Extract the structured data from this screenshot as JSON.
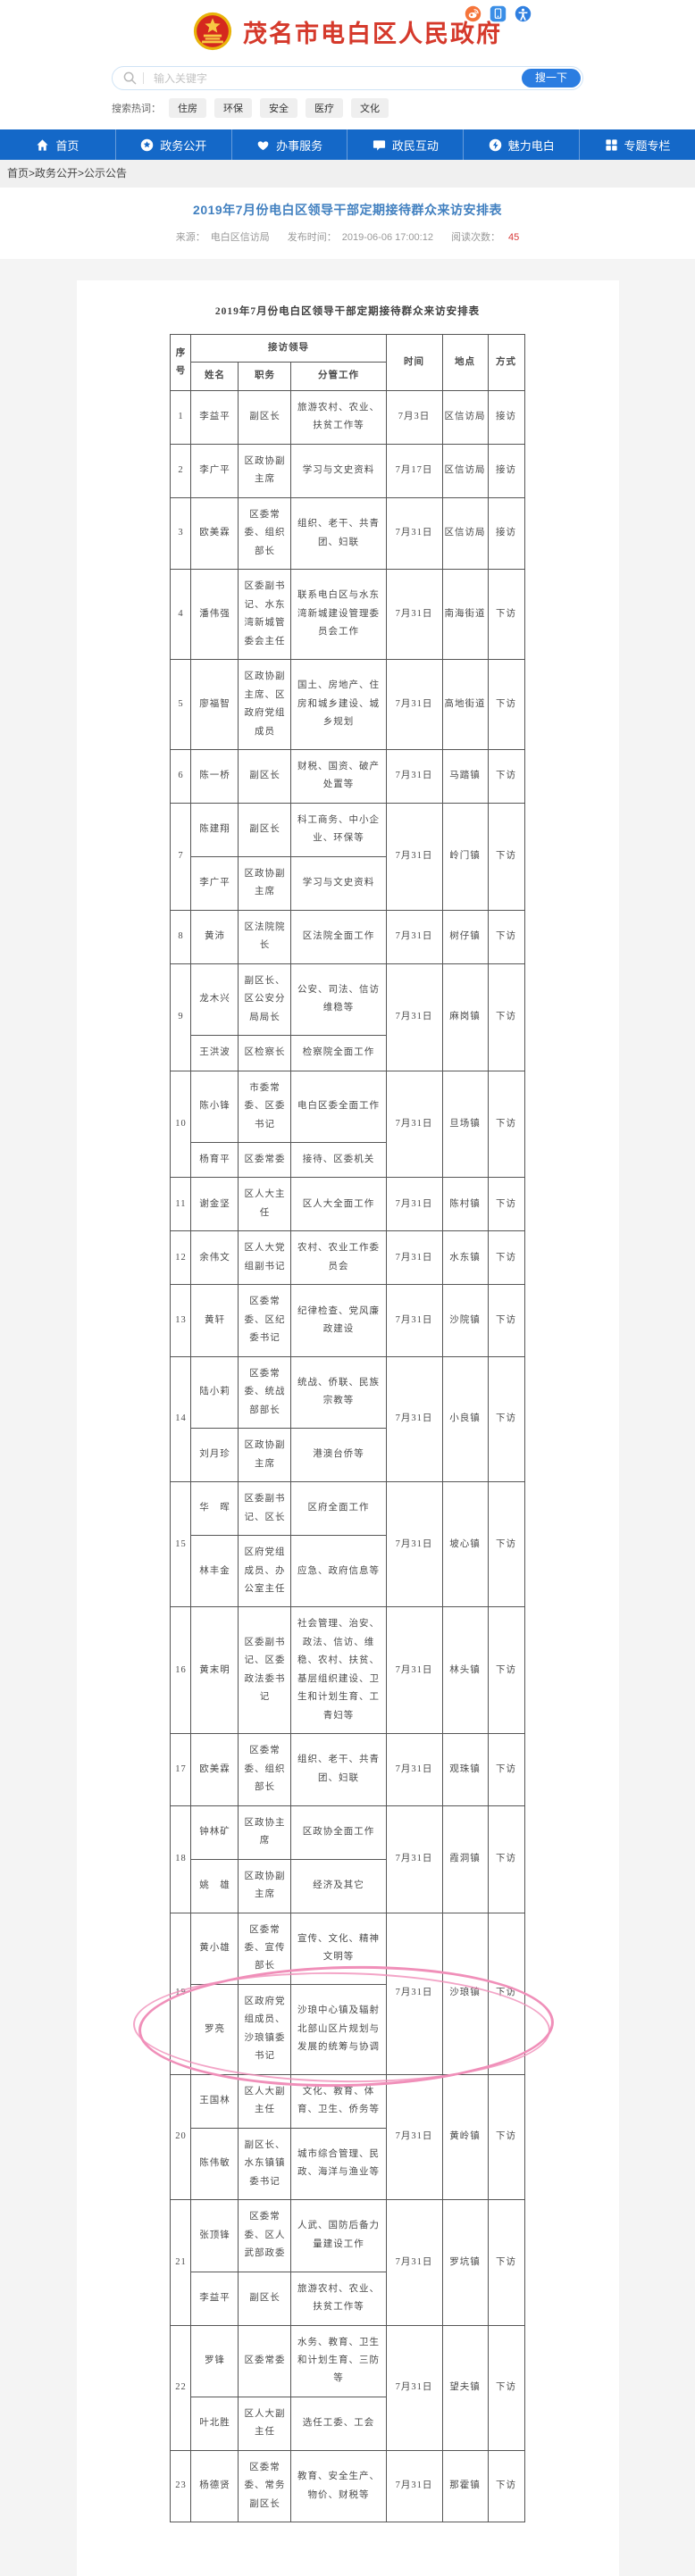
{
  "colors": {
    "accent_red": "#d5392b",
    "nav_blue": "#1468c8",
    "search_button_blue": "#2b7de1",
    "title_blue": "#4180c0",
    "views_red": "#d83b3b",
    "annotation_pink": "#f08fb9"
  },
  "header": {
    "site_title": "茂名市电白区人民政府",
    "top_icons": [
      "weibo",
      "mobile",
      "accessibility"
    ],
    "search": {
      "placeholder": "输入关键字",
      "button": "搜一下",
      "hot_label": "搜索热词：",
      "hot_words": [
        "住房",
        "环保",
        "安全",
        "医疗",
        "文化"
      ]
    }
  },
  "nav": {
    "items": [
      {
        "label": "首页",
        "icon": "home"
      },
      {
        "label": "政务公开",
        "icon": "star-circle"
      },
      {
        "label": "办事服务",
        "icon": "heart"
      },
      {
        "label": "政民互动",
        "icon": "chat-bubble"
      },
      {
        "label": "魅力电白",
        "icon": "charm-circle"
      },
      {
        "label": "专题专栏",
        "icon": "grid"
      }
    ]
  },
  "breadcrumb": {
    "path": "首页>政务公开>公示公告"
  },
  "article": {
    "title": "2019年7月份电白区领导干部定期接待群众来访安排表",
    "meta": {
      "source_label": "来源：",
      "source": "电白区信访局",
      "time_label": "发布时间：",
      "time": "2019-06-06 17:00:12",
      "views_label": "阅读次数：",
      "views": "45"
    }
  },
  "table": {
    "caption": "2019年7月份电白区领导干部定期接待群众来访安排表",
    "headers": {
      "seq": "序号",
      "leader_group": "接访领导",
      "name": "姓名",
      "duty": "职务",
      "work": "分管工作",
      "time": "时间",
      "place": "地点",
      "method": "方式"
    },
    "rows": [
      {
        "seq": "1",
        "persons": [
          {
            "name": "李益平",
            "title": "副区长",
            "work": "旅游农村、农业、扶贫工作等"
          }
        ],
        "time": "7月3日",
        "place": "区信访局",
        "method": "接访",
        "highlight": false
      },
      {
        "seq": "2",
        "persons": [
          {
            "name": "李广平",
            "title": "区政协副主席",
            "work": "学习与文史资料"
          }
        ],
        "time": "7月17日",
        "place": "区信访局",
        "method": "接访",
        "highlight": false
      },
      {
        "seq": "3",
        "persons": [
          {
            "name": "欧美霖",
            "title": "区委常委、组织部长",
            "work": "组织、老干、共青团、妇联"
          }
        ],
        "time": "7月31日",
        "place": "区信访局",
        "method": "接访",
        "highlight": false
      },
      {
        "seq": "4",
        "persons": [
          {
            "name": "潘伟强",
            "title": "区委副书记、水东湾新城管委会主任",
            "work": "联系电白区与水东湾新城建设管理委员会工作"
          }
        ],
        "time": "7月31日",
        "place": "南海街道",
        "method": "下访",
        "highlight": false
      },
      {
        "seq": "5",
        "persons": [
          {
            "name": "廖福智",
            "title": "区政协副主席、区政府党组成员",
            "work": "国土、房地产、住房和城乡建设、城乡规划"
          }
        ],
        "time": "7月31日",
        "place": "高地街道",
        "method": "下访",
        "highlight": false
      },
      {
        "seq": "6",
        "persons": [
          {
            "name": "陈一桥",
            "title": "副区长",
            "work": "财税、国资、破产处置等"
          }
        ],
        "time": "7月31日",
        "place": "马踏镇",
        "method": "下访",
        "highlight": false
      },
      {
        "seq": "7",
        "persons": [
          {
            "name": "陈建翔",
            "title": "副区长",
            "work": "科工商务、中小企业、环保等"
          },
          {
            "name": "李广平",
            "title": "区政协副主席",
            "work": "学习与文史资料"
          }
        ],
        "time": "7月31日",
        "place": "岭门镇",
        "method": "下访",
        "highlight": false
      },
      {
        "seq": "8",
        "persons": [
          {
            "name": "黄沛",
            "title": "区法院院长",
            "work": "区法院全面工作"
          }
        ],
        "time": "7月31日",
        "place": "树仔镇",
        "method": "下访",
        "highlight": false
      },
      {
        "seq": "9",
        "persons": [
          {
            "name": "龙木兴",
            "title": "副区长、区公安分局局长",
            "work": "公安、司法、信访维稳等"
          },
          {
            "name": "王洪波",
            "title": "区检察长",
            "work": "检察院全面工作"
          }
        ],
        "time": "7月31日",
        "place": "麻岗镇",
        "method": "下访",
        "highlight": false
      },
      {
        "seq": "10",
        "persons": [
          {
            "name": "陈小锋",
            "title": "市委常委、区委书记",
            "work": "电白区委全面工作"
          },
          {
            "name": "杨育平",
            "title": "区委常委",
            "work": "接待、区委机关"
          }
        ],
        "time": "7月31日",
        "place": "旦场镇",
        "method": "下访",
        "highlight": false
      },
      {
        "seq": "11",
        "persons": [
          {
            "name": "谢金坚",
            "title": "区人大主任",
            "work": "区人大全面工作"
          }
        ],
        "time": "7月31日",
        "place": "陈村镇",
        "method": "下访",
        "highlight": false
      },
      {
        "seq": "12",
        "persons": [
          {
            "name": "余伟文",
            "title": "区人大党组副书记",
            "work": "农村、农业工作委员会"
          }
        ],
        "time": "7月31日",
        "place": "水东镇",
        "method": "下访",
        "highlight": false
      },
      {
        "seq": "13",
        "persons": [
          {
            "name": "黄轩",
            "title": "区委常委、区纪委书记",
            "work": "纪律检查、党风廉政建设"
          }
        ],
        "time": "7月31日",
        "place": "沙院镇",
        "method": "下访",
        "highlight": false
      },
      {
        "seq": "14",
        "persons": [
          {
            "name": "陆小莉",
            "title": "区委常委、统战部部长",
            "work": "统战、侨联、民族宗教等"
          },
          {
            "name": "刘月珍",
            "title": "区政协副主席",
            "work": "港澳台侨等"
          }
        ],
        "time": "7月31日",
        "place": "小良镇",
        "method": "下访",
        "highlight": false
      },
      {
        "seq": "15",
        "persons": [
          {
            "name": "华　晖",
            "title": "区委副书记、区长",
            "work": "区府全面工作"
          },
          {
            "name": "林丰金",
            "title": "区府党组成员、办公室主任",
            "work": "应急、政府信息等"
          }
        ],
        "time": "7月31日",
        "place": "坡心镇",
        "method": "下访",
        "highlight": false
      },
      {
        "seq": "16",
        "persons": [
          {
            "name": "黄末明",
            "title": "区委副书记、区委政法委书记",
            "work": "社会管理、治安、政法、信访、维稳、农村、扶贫、基层组织建设、卫生和计划生育、工青妇等"
          }
        ],
        "time": "7月31日",
        "place": "林头镇",
        "method": "下访",
        "highlight": false
      },
      {
        "seq": "17",
        "persons": [
          {
            "name": "欧美霖",
            "title": "区委常委、组织部长",
            "work": "组织、老干、共青团、妇联"
          }
        ],
        "time": "7月31日",
        "place": "观珠镇",
        "method": "下访",
        "highlight": false
      },
      {
        "seq": "18",
        "persons": [
          {
            "name": "钟林矿",
            "title": "区政协主席",
            "work": "区政协全面工作"
          },
          {
            "name": "姚　雄",
            "title": "区政协副主席",
            "work": "经济及其它"
          }
        ],
        "time": "7月31日",
        "place": "霞洞镇",
        "method": "下访",
        "highlight": false
      },
      {
        "seq": "19",
        "persons": [
          {
            "name": "黄小雄",
            "title": "区委常委、宣传部长",
            "work": "宣传、文化、精神文明等"
          },
          {
            "name": "罗亮",
            "title": "区政府党组成员、沙琅镇委书记",
            "work": "沙琅中心镇及辐射北部山区片规划与发展的统筹与协调"
          }
        ],
        "time": "7月31日",
        "place": "沙琅镇",
        "method": "下访",
        "highlight": true
      },
      {
        "seq": "20",
        "persons": [
          {
            "name": "王国林",
            "title": "区人大副主任",
            "work": "文化、教育、体育、卫生、侨务等"
          },
          {
            "name": "陈伟敏",
            "title": "副区长、水东镇镇委书记",
            "work": "城市综合管理、民政、海洋与渔业等"
          }
        ],
        "time": "7月31日",
        "place": "黄岭镇",
        "method": "下访",
        "highlight": false
      },
      {
        "seq": "21",
        "persons": [
          {
            "name": "张顶锋",
            "title": "区委常委、区人武部政委",
            "work": "人武、国防后备力量建设工作"
          },
          {
            "name": "李益平",
            "title": "副区长",
            "work": "旅游农村、农业、扶贫工作等"
          }
        ],
        "time": "7月31日",
        "place": "罗坑镇",
        "method": "下访",
        "highlight": false
      },
      {
        "seq": "22",
        "persons": [
          {
            "name": "罗锋",
            "title": "区委常委",
            "work": "水务、教育、卫生和计划生育、三防等"
          },
          {
            "name": "叶北胜",
            "title": "区人大副主任",
            "work": "选任工委、工会"
          }
        ],
        "time": "7月31日",
        "place": "望夫镇",
        "method": "下访",
        "highlight": false
      },
      {
        "seq": "23",
        "persons": [
          {
            "name": "杨德贤",
            "title": "区委常委、常务副区长",
            "work": "教育、安全生产、物价、财税等"
          }
        ],
        "time": "7月31日",
        "place": "那霍镇",
        "method": "下访",
        "highlight": false
      }
    ]
  },
  "annotation": {
    "type": "hand-drawn-ellipse",
    "circled_seq": "19",
    "color": "#f08fb9"
  }
}
